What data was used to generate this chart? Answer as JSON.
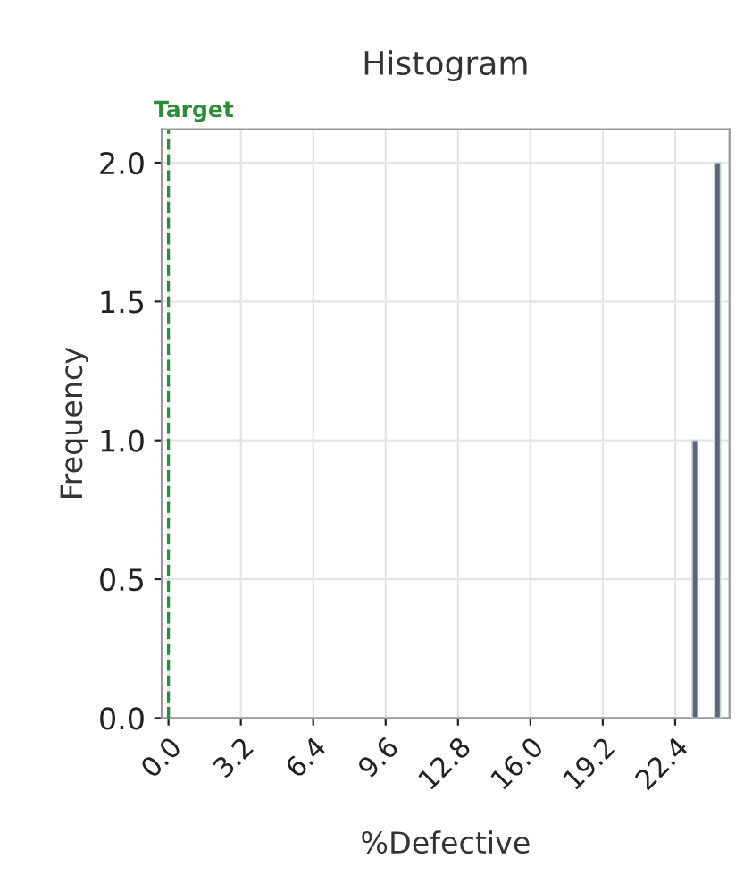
{
  "chart_data": {
    "type": "histogram",
    "title": "Histogram",
    "xlabel": "%Defective",
    "ylabel": "Frequency",
    "bins": [
      23.15,
      23.4,
      24.15,
      24.4
    ],
    "values": [
      1,
      0,
      2
    ],
    "color": "#5b6575",
    "xlim": [
      -0.3,
      24.8
    ],
    "xticks": [
      {
        "value": 0,
        "label": "0.0"
      },
      3.2,
      6.4,
      9.6,
      12.8,
      {
        "value": 16,
        "label": "16.0"
      },
      19.2,
      22.4
    ],
    "ylim": [
      0,
      2.12
    ],
    "yticks": [
      {
        "value": 0,
        "label": "0.0"
      },
      0.5,
      {
        "value": 1,
        "label": "1.0"
      },
      1.5,
      {
        "value": 2,
        "label": "2.0"
      }
    ],
    "grid": true,
    "ref_lines": [
      {
        "axis": "x",
        "value": 0,
        "label": "Target",
        "color": "#2e8b3a",
        "line_style": "dashed"
      }
    ]
  }
}
